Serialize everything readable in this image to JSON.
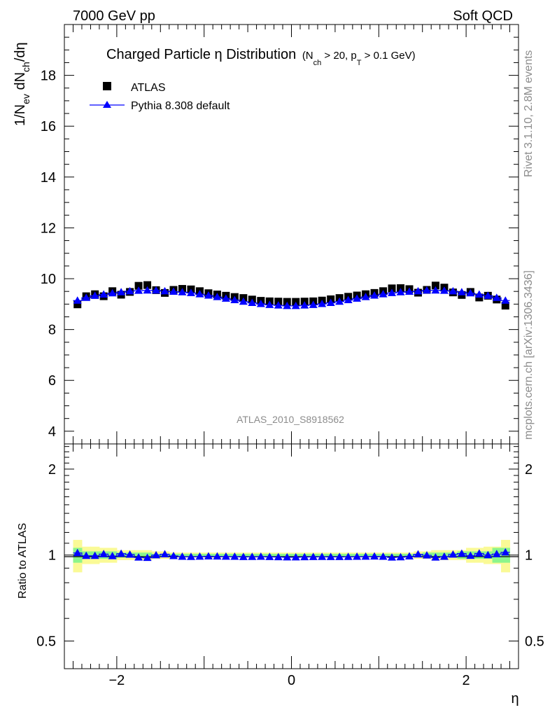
{
  "header": {
    "left": "7000 GeV pp",
    "right": "Soft QCD"
  },
  "side": {
    "top": "Rivet 3.1.10,  2.8M events",
    "bottom": "mcplots.cern.ch [arXiv:1306.3436]"
  },
  "analysis_tag": "ATLAS_2010_S8918562",
  "chart_data": [
    {
      "type": "scatter",
      "title": "Charged Particle η Distribution",
      "title_qualifier": {
        "open": "(N",
        "sub1": "ch",
        "mid1": " > 20, p",
        "sub2": "T",
        "mid2": " > 0.1 GeV)"
      },
      "ylabel": {
        "a": "1/N",
        "sub_ev": "ev",
        "b": " dN",
        "sub_ch": "ch",
        "c": "/dη"
      },
      "xlim": [
        -2.6,
        2.6
      ],
      "ylim": [
        3.5,
        20.0
      ],
      "yticks": [
        4,
        6,
        8,
        10,
        12,
        14,
        16,
        18
      ],
      "legend_placement": "top-left",
      "x": [
        -2.45,
        -2.35,
        -2.25,
        -2.15,
        -2.05,
        -1.95,
        -1.85,
        -1.75,
        -1.65,
        -1.55,
        -1.45,
        -1.35,
        -1.25,
        -1.15,
        -1.05,
        -0.95,
        -0.85,
        -0.75,
        -0.65,
        -0.55,
        -0.45,
        -0.35,
        -0.25,
        -0.15,
        -0.05,
        0.05,
        0.15,
        0.25,
        0.35,
        0.45,
        0.55,
        0.65,
        0.75,
        0.85,
        0.95,
        1.05,
        1.15,
        1.25,
        1.35,
        1.45,
        1.55,
        1.65,
        1.75,
        1.85,
        1.95,
        2.05,
        2.15,
        2.25,
        2.35,
        2.45
      ],
      "series": [
        {
          "name": "ATLAS",
          "marker": "square",
          "color": "#000000",
          "values": [
            8.99,
            9.31,
            9.39,
            9.31,
            9.51,
            9.37,
            9.48,
            9.72,
            9.75,
            9.55,
            9.44,
            9.56,
            9.6,
            9.58,
            9.51,
            9.43,
            9.38,
            9.33,
            9.28,
            9.24,
            9.18,
            9.13,
            9.11,
            9.1,
            9.09,
            9.09,
            9.1,
            9.11,
            9.14,
            9.19,
            9.24,
            9.29,
            9.34,
            9.39,
            9.44,
            9.51,
            9.62,
            9.63,
            9.59,
            9.45,
            9.56,
            9.73,
            9.65,
            9.46,
            9.36,
            9.48,
            9.26,
            9.33,
            9.18,
            8.94
          ]
        },
        {
          "name": "Pythia 8.308 default",
          "marker": "triangle",
          "color": "#0000ff",
          "values": [
            9.14,
            9.25,
            9.33,
            9.38,
            9.43,
            9.47,
            9.51,
            9.53,
            9.54,
            9.54,
            9.51,
            9.49,
            9.47,
            9.44,
            9.39,
            9.34,
            9.28,
            9.22,
            9.16,
            9.1,
            9.05,
            9.01,
            8.97,
            8.95,
            8.93,
            8.93,
            8.95,
            8.97,
            9.01,
            9.05,
            9.1,
            9.16,
            9.22,
            9.28,
            9.34,
            9.39,
            9.44,
            9.47,
            9.49,
            9.51,
            9.54,
            9.54,
            9.53,
            9.51,
            9.47,
            9.43,
            9.38,
            9.33,
            9.25,
            9.14
          ]
        }
      ]
    },
    {
      "type": "scatter",
      "ylabel": "Ratio to ATLAS",
      "xlabel": "η",
      "xlim": [
        -2.6,
        2.6
      ],
      "ylim": [
        0.4,
        2.45
      ],
      "yscale": "log",
      "yticks": [
        0.5,
        1,
        2
      ],
      "xticks": [
        -2,
        0,
        2
      ],
      "reference": 1,
      "bands": {
        "green": "#8cf58c",
        "yellow": "#fafa96",
        "inner_halfwidth": [
          0.06,
          0.03,
          0.03,
          0.03,
          0.03,
          0.02,
          0.02,
          0.02,
          0.02,
          0.01,
          0.01,
          0.01,
          0.01,
          0.01,
          0.01,
          0.01,
          0.01,
          0.01,
          0.01,
          0.01,
          0.01,
          0.01,
          0.01,
          0.01,
          0.01,
          0.01,
          0.01,
          0.01,
          0.01,
          0.01,
          0.01,
          0.01,
          0.01,
          0.01,
          0.01,
          0.01,
          0.01,
          0.01,
          0.01,
          0.01,
          0.02,
          0.02,
          0.02,
          0.02,
          0.03,
          0.03,
          0.03,
          0.03,
          0.06,
          0.06
        ],
        "outer_halfwidth": [
          0.13,
          0.07,
          0.07,
          0.06,
          0.06,
          0.04,
          0.04,
          0.04,
          0.04,
          0.03,
          0.03,
          0.02,
          0.02,
          0.02,
          0.02,
          0.02,
          0.02,
          0.02,
          0.02,
          0.02,
          0.02,
          0.02,
          0.02,
          0.02,
          0.02,
          0.02,
          0.02,
          0.02,
          0.02,
          0.02,
          0.02,
          0.02,
          0.02,
          0.02,
          0.02,
          0.02,
          0.02,
          0.02,
          0.02,
          0.03,
          0.03,
          0.04,
          0.04,
          0.04,
          0.04,
          0.06,
          0.06,
          0.07,
          0.07,
          0.13
        ]
      },
      "series": [
        {
          "name": "Pythia 8.308 default",
          "marker": "triangle",
          "color": "#0000ff",
          "values": [
            1.017,
            0.994,
            0.994,
            1.008,
            0.992,
            1.011,
            1.004,
            0.981,
            0.978,
            0.999,
            1.007,
            0.993,
            0.987,
            0.986,
            0.988,
            0.99,
            0.989,
            0.988,
            0.987,
            0.985,
            0.986,
            0.987,
            0.985,
            0.984,
            0.982,
            0.982,
            0.984,
            0.985,
            0.986,
            0.985,
            0.985,
            0.986,
            0.987,
            0.988,
            0.989,
            0.987,
            0.981,
            0.983,
            0.99,
            1.006,
            0.998,
            0.981,
            0.987,
            1.005,
            1.012,
            0.995,
            1.013,
            1.0,
            1.008,
            1.022
          ]
        }
      ]
    }
  ]
}
